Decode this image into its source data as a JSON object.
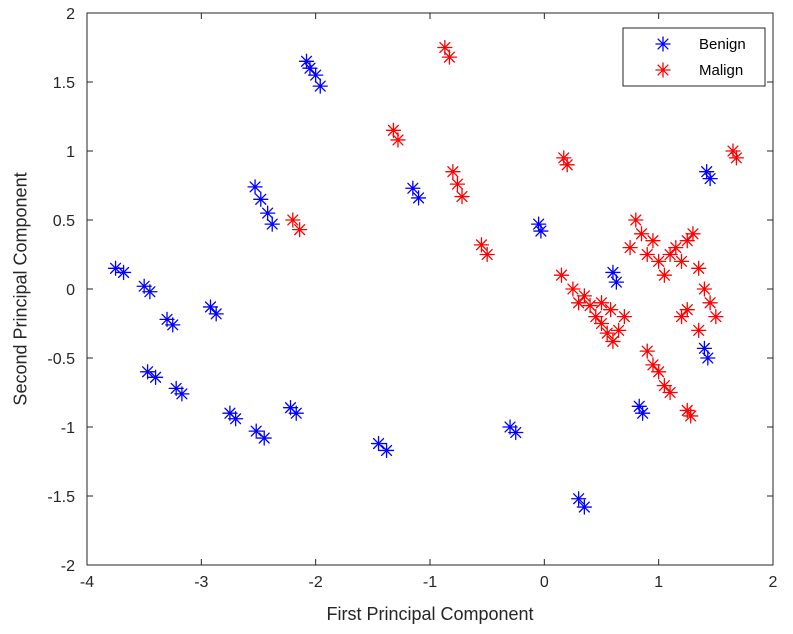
{
  "chart_data": {
    "type": "scatter",
    "title": "",
    "xlabel": "First Principal Component",
    "ylabel": "Second Principal Component",
    "xlim": [
      -4,
      2
    ],
    "ylim": [
      -2,
      2
    ],
    "xticks": [
      -4,
      -3,
      -2,
      -1,
      0,
      1,
      2
    ],
    "yticks": [
      -2,
      -1.5,
      -1,
      -0.5,
      0,
      0.5,
      1,
      1.5,
      2
    ],
    "xtick_labels": [
      "-4",
      "-3",
      "-2",
      "-1",
      "0",
      "1",
      "2"
    ],
    "ytick_labels": [
      "-2",
      "-1.5",
      "-1",
      "-0.5",
      "0",
      "0.5",
      "1",
      "1.5",
      "2"
    ],
    "grid": false,
    "legend_position": "top-right",
    "marker": "asterisk",
    "series": [
      {
        "name": "Benign",
        "color": "#0000ff",
        "points": [
          [
            -2.08,
            1.65
          ],
          [
            -2.05,
            1.6
          ],
          [
            -2.0,
            1.55
          ],
          [
            -1.96,
            1.47
          ],
          [
            -2.53,
            0.74
          ],
          [
            -2.48,
            0.65
          ],
          [
            -2.42,
            0.55
          ],
          [
            -2.38,
            0.47
          ],
          [
            -1.15,
            0.73
          ],
          [
            -1.1,
            0.66
          ],
          [
            -0.05,
            0.47
          ],
          [
            -0.03,
            0.42
          ],
          [
            1.42,
            0.85
          ],
          [
            1.45,
            0.8
          ],
          [
            -3.75,
            0.15
          ],
          [
            -3.68,
            0.12
          ],
          [
            -3.5,
            0.02
          ],
          [
            -3.45,
            -0.02
          ],
          [
            -3.3,
            -0.22
          ],
          [
            -3.25,
            -0.26
          ],
          [
            -2.92,
            -0.13
          ],
          [
            -2.87,
            -0.18
          ],
          [
            0.6,
            0.12
          ],
          [
            0.63,
            0.05
          ],
          [
            1.4,
            -0.43
          ],
          [
            1.43,
            -0.5
          ],
          [
            -3.47,
            -0.6
          ],
          [
            -3.4,
            -0.64
          ],
          [
            -3.22,
            -0.72
          ],
          [
            -3.17,
            -0.76
          ],
          [
            -2.75,
            -0.9
          ],
          [
            -2.7,
            -0.94
          ],
          [
            -2.52,
            -1.03
          ],
          [
            -2.45,
            -1.08
          ],
          [
            -2.22,
            -0.86
          ],
          [
            -2.17,
            -0.9
          ],
          [
            -1.45,
            -1.12
          ],
          [
            -1.38,
            -1.17
          ],
          [
            -0.3,
            -1.0
          ],
          [
            -0.25,
            -1.04
          ],
          [
            0.83,
            -0.85
          ],
          [
            0.86,
            -0.9
          ],
          [
            0.3,
            -1.52
          ],
          [
            0.35,
            -1.58
          ]
        ]
      },
      {
        "name": "Malign",
        "color": "#ff0000",
        "points": [
          [
            -0.87,
            1.75
          ],
          [
            -0.83,
            1.68
          ],
          [
            -1.32,
            1.15
          ],
          [
            -1.28,
            1.08
          ],
          [
            -0.8,
            0.85
          ],
          [
            -0.76,
            0.76
          ],
          [
            -0.72,
            0.67
          ],
          [
            0.17,
            0.95
          ],
          [
            0.2,
            0.9
          ],
          [
            1.65,
            1.0
          ],
          [
            1.68,
            0.95
          ],
          [
            -2.2,
            0.5
          ],
          [
            -2.14,
            0.43
          ],
          [
            -0.55,
            0.32
          ],
          [
            -0.5,
            0.25
          ],
          [
            0.15,
            0.1
          ],
          [
            0.25,
            0.0
          ],
          [
            0.35,
            -0.05
          ],
          [
            0.4,
            -0.12
          ],
          [
            0.45,
            -0.2
          ],
          [
            0.5,
            -0.25
          ],
          [
            0.55,
            -0.32
          ],
          [
            0.6,
            -0.38
          ],
          [
            0.65,
            -0.3
          ],
          [
            0.7,
            -0.2
          ],
          [
            0.3,
            -0.1
          ],
          [
            0.5,
            -0.1
          ],
          [
            0.58,
            -0.15
          ],
          [
            0.75,
            0.3
          ],
          [
            0.8,
            0.5
          ],
          [
            0.85,
            0.4
          ],
          [
            0.9,
            0.25
          ],
          [
            0.95,
            0.35
          ],
          [
            1.0,
            0.2
          ],
          [
            1.05,
            0.1
          ],
          [
            1.1,
            0.25
          ],
          [
            1.15,
            0.3
          ],
          [
            1.2,
            0.2
          ],
          [
            1.25,
            0.35
          ],
          [
            1.3,
            0.4
          ],
          [
            1.35,
            0.15
          ],
          [
            1.4,
            0.0
          ],
          [
            1.45,
            -0.1
          ],
          [
            1.5,
            -0.2
          ],
          [
            1.35,
            -0.3
          ],
          [
            1.2,
            -0.2
          ],
          [
            1.25,
            -0.15
          ],
          [
            0.9,
            -0.45
          ],
          [
            0.95,
            -0.55
          ],
          [
            1.0,
            -0.6
          ],
          [
            1.05,
            -0.7
          ],
          [
            1.1,
            -0.75
          ],
          [
            1.25,
            -0.88
          ],
          [
            1.28,
            -0.92
          ]
        ]
      }
    ]
  }
}
